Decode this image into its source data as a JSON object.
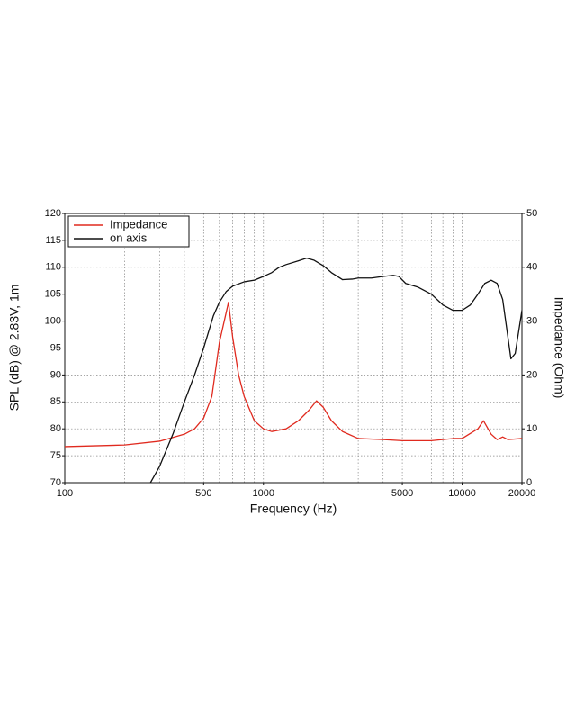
{
  "chart_data": {
    "type": "line",
    "xlabel": "Frequency (Hz)",
    "ylabel": "SPL (dB) @ 2.83V, 1m",
    "y2label": "Impedance (Ohm)",
    "xscale": "log",
    "xlim": [
      100,
      20000
    ],
    "xticks": [
      100,
      500,
      1000,
      5000,
      10000,
      20000
    ],
    "xminorticks": [
      200,
      300,
      400,
      600,
      700,
      800,
      900,
      2000,
      3000,
      4000,
      6000,
      7000,
      8000,
      9000
    ],
    "ylim": [
      70,
      120
    ],
    "yticks": [
      70,
      75,
      80,
      85,
      90,
      95,
      100,
      105,
      110,
      115,
      120
    ],
    "y2lim": [
      0,
      50
    ],
    "y2ticks": [
      0,
      10,
      20,
      30,
      40,
      50
    ],
    "grid": true,
    "legend": "upper left",
    "series": [
      {
        "name": "Impedance",
        "color": "#e02a1f",
        "axis": "y2",
        "x": [
          100,
          200,
          300,
          400,
          450,
          500,
          550,
          600,
          667,
          700,
          750,
          800,
          900,
          1000,
          1100,
          1300,
          1500,
          1700,
          1850,
          2000,
          2200,
          2500,
          3000,
          4000,
          5000,
          7000,
          9000,
          10000,
          12000,
          12800,
          14000,
          15000,
          16000,
          17000,
          20000
        ],
        "values": [
          6.7,
          7.0,
          7.7,
          9,
          10,
          12,
          16,
          26,
          33.5,
          27,
          20,
          16,
          11.5,
          10,
          9.5,
          10,
          11.5,
          13.5,
          15.2,
          14,
          11.5,
          9.5,
          8.2,
          8,
          7.8,
          7.8,
          8.2,
          8.2,
          10,
          11.5,
          9,
          8,
          8.5,
          8,
          8.2
        ]
      },
      {
        "name": "on axis",
        "color": "#111111",
        "x": [
          270,
          300,
          350,
          400,
          450,
          500,
          560,
          600,
          650,
          700,
          800,
          900,
          1000,
          1100,
          1200,
          1300,
          1500,
          1650,
          1800,
          2000,
          2200,
          2500,
          2800,
          3000,
          3500,
          4000,
          4500,
          4800,
          5200,
          6000,
          7000,
          8000,
          9000,
          10000,
          11000,
          12000,
          13000,
          14000,
          15000,
          16000,
          17000,
          17600,
          18500,
          20000
        ],
        "values": [
          70,
          73,
          79,
          85,
          90,
          95,
          101,
          103.5,
          105.5,
          106.5,
          107.3,
          107.6,
          108.3,
          109,
          110,
          110.5,
          111.2,
          111.7,
          111.3,
          110.3,
          109,
          107.7,
          107.8,
          108,
          108,
          108.3,
          108.5,
          108.3,
          107,
          106.3,
          105,
          103,
          102,
          102,
          103,
          105,
          107,
          107.6,
          107,
          104,
          97,
          93,
          94,
          102
        ]
      }
    ]
  }
}
